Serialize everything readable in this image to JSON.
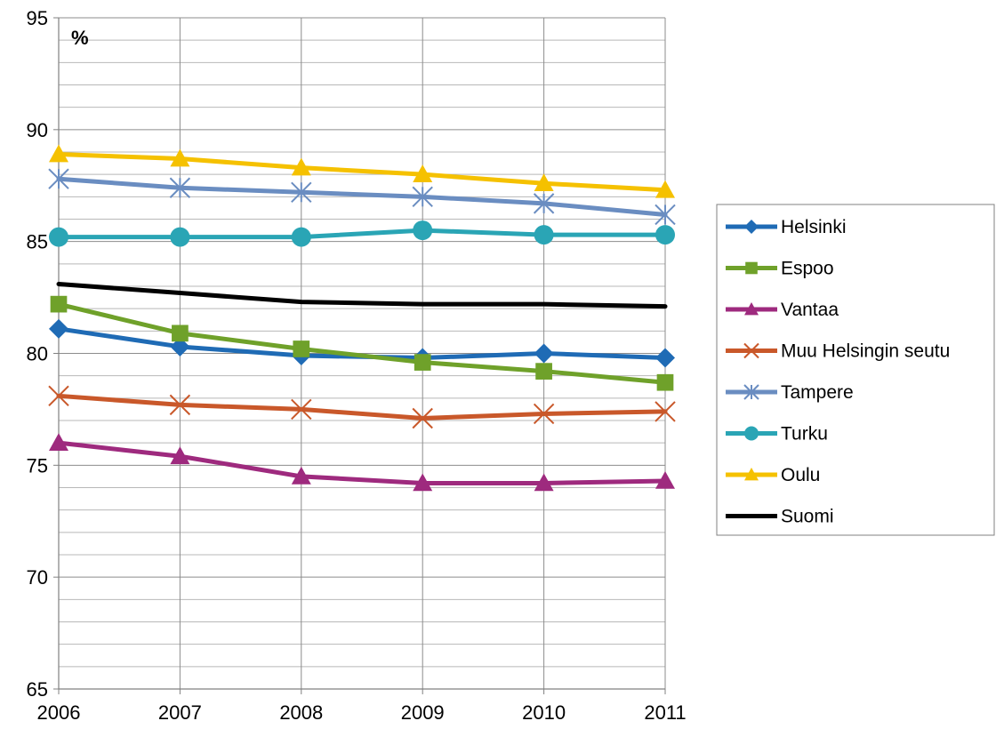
{
  "chart_data": {
    "type": "line",
    "unit_label": "%",
    "x": [
      "2006",
      "2007",
      "2008",
      "2009",
      "2010",
      "2011"
    ],
    "ylim": [
      65,
      95
    ],
    "y_ticks": [
      65,
      70,
      75,
      80,
      85,
      90,
      95
    ],
    "y_minor_step": 1,
    "grid": true,
    "legend_position": "right",
    "series": [
      {
        "name": "Helsinki",
        "color": "#1F6BB5",
        "marker": "diamond",
        "values": [
          81.1,
          80.3,
          79.9,
          79.8,
          80.0,
          79.8
        ]
      },
      {
        "name": "Espoo",
        "color": "#6FA12A",
        "marker": "square",
        "values": [
          82.2,
          80.9,
          80.2,
          79.6,
          79.2,
          78.7
        ]
      },
      {
        "name": "Vantaa",
        "color": "#9E2A7E",
        "marker": "triangle",
        "values": [
          76.0,
          75.4,
          74.5,
          74.2,
          74.2,
          74.3
        ]
      },
      {
        "name": "Muu Helsingin seutu",
        "color": "#C9582A",
        "marker": "x",
        "values": [
          78.1,
          77.7,
          77.5,
          77.1,
          77.3,
          77.4
        ]
      },
      {
        "name": "Tampere",
        "color": "#6A8DC1",
        "marker": "star",
        "values": [
          87.8,
          87.4,
          87.2,
          87.0,
          86.7,
          86.2
        ]
      },
      {
        "name": "Turku",
        "color": "#2AA5B5",
        "marker": "circle",
        "values": [
          85.2,
          85.2,
          85.2,
          85.5,
          85.3,
          85.3
        ]
      },
      {
        "name": "Oulu",
        "color": "#F5C100",
        "marker": "triangle",
        "values": [
          88.9,
          88.7,
          88.3,
          88.0,
          87.6,
          87.3
        ]
      },
      {
        "name": "Suomi",
        "color": "#000000",
        "marker": "none",
        "values": [
          83.1,
          82.7,
          82.3,
          82.2,
          82.2,
          82.1
        ]
      }
    ]
  }
}
